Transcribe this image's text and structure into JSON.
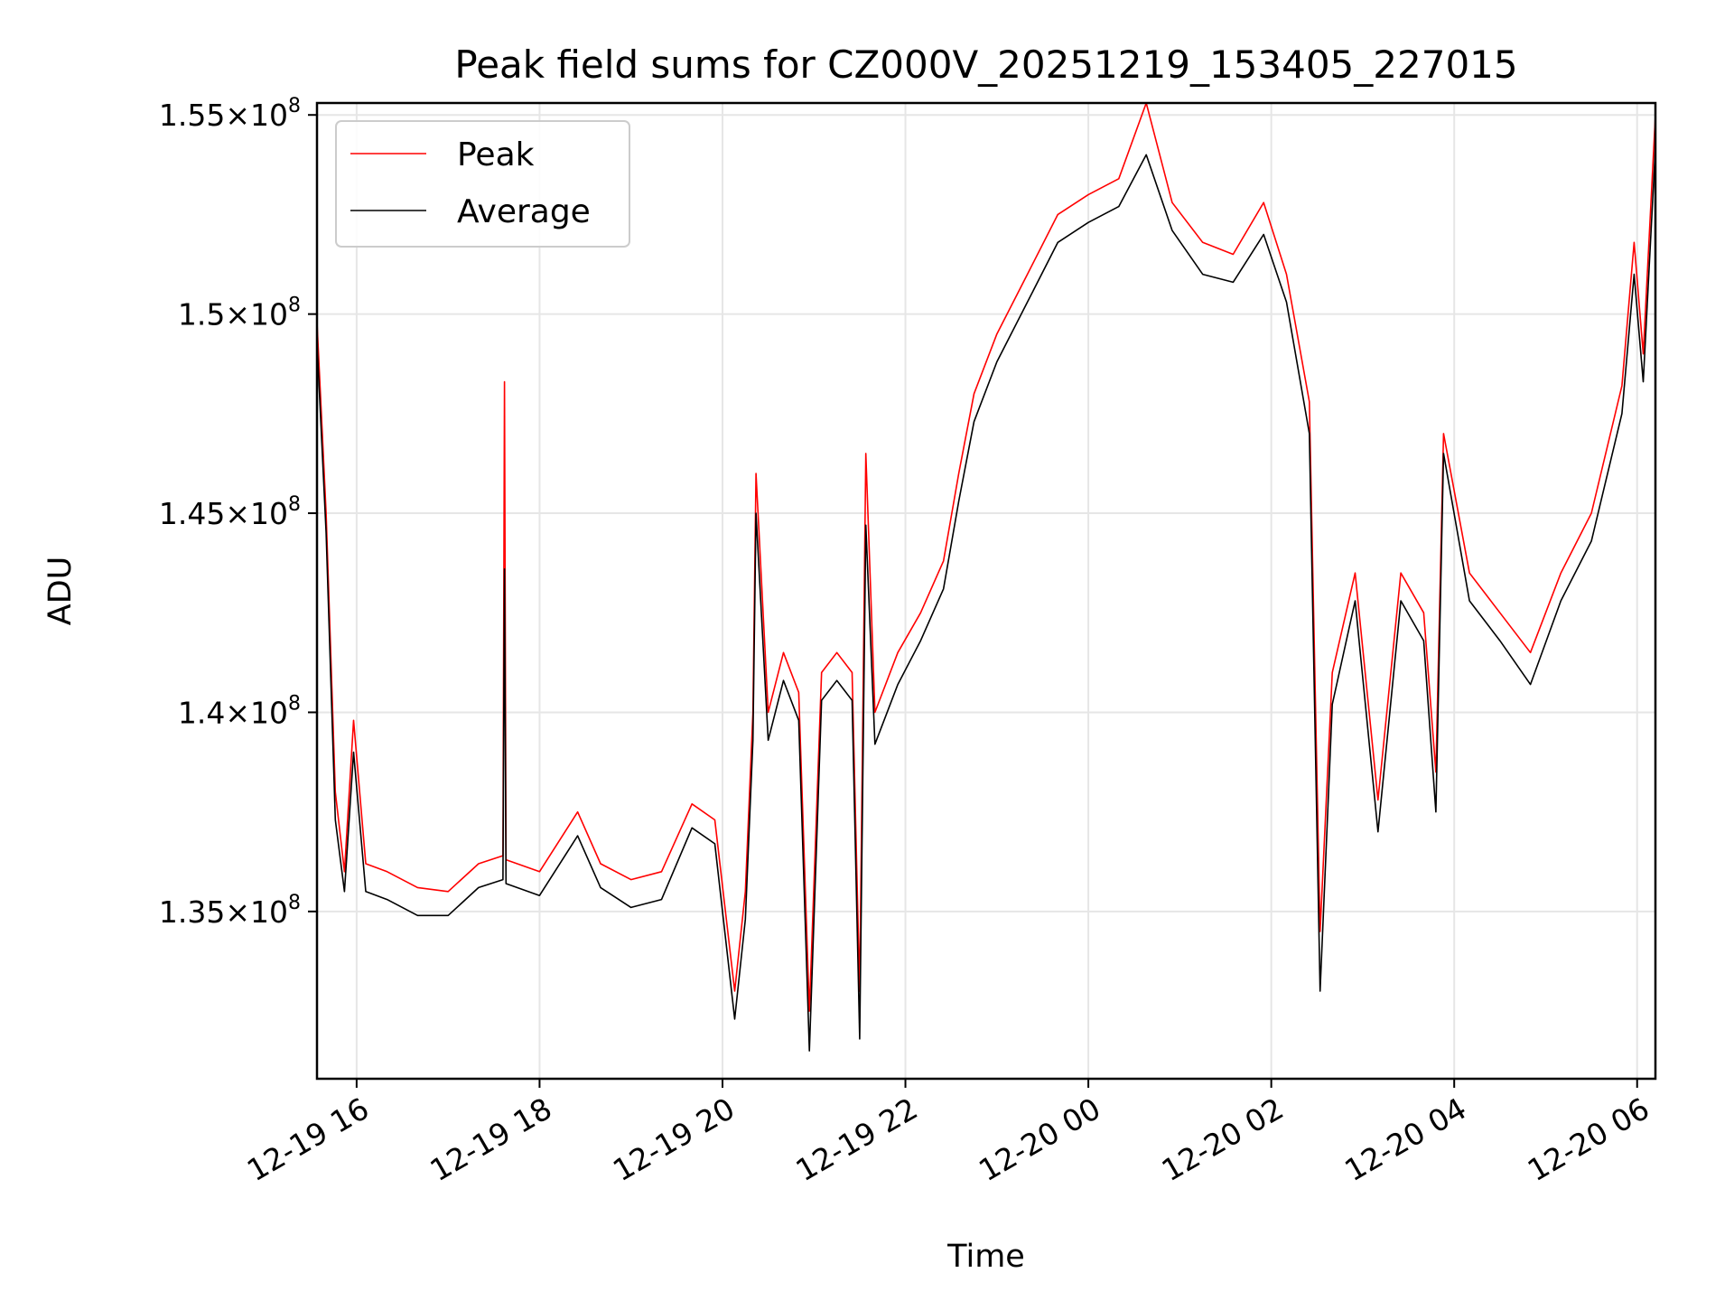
{
  "chart_data": {
    "type": "line",
    "title": "Peak field sums for CZ000V_20251219_153405_227015",
    "xlabel": "Time",
    "ylabel": "ADU",
    "x_range": [
      "2025-12-19T15:34",
      "2025-12-20T06:12"
    ],
    "ylim": [
      130800000,
      155300000
    ],
    "grid": true,
    "legend_position": "upper-left",
    "x_ticks": [
      {
        "t": "2025-12-19T16:00",
        "label": "12-19 16"
      },
      {
        "t": "2025-12-19T18:00",
        "label": "12-19 18"
      },
      {
        "t": "2025-12-19T20:00",
        "label": "12-19 20"
      },
      {
        "t": "2025-12-19T22:00",
        "label": "12-19 22"
      },
      {
        "t": "2025-12-20T00:00",
        "label": "12-20 00"
      },
      {
        "t": "2025-12-20T02:00",
        "label": "12-20 02"
      },
      {
        "t": "2025-12-20T04:00",
        "label": "12-20 04"
      },
      {
        "t": "2025-12-20T06:00",
        "label": "12-20 06"
      }
    ],
    "y_ticks": [
      {
        "value": 135000000,
        "mantissa": "1.35",
        "base": "10",
        "exponent": "8"
      },
      {
        "value": 140000000,
        "mantissa": "1.4",
        "base": "10",
        "exponent": "8"
      },
      {
        "value": 145000000,
        "mantissa": "1.45",
        "base": "10",
        "exponent": "8"
      },
      {
        "value": 150000000,
        "mantissa": "1.5",
        "base": "10",
        "exponent": "8"
      },
      {
        "value": 155000000,
        "mantissa": "1.55",
        "base": "10",
        "exponent": "8"
      }
    ],
    "series": [
      {
        "name": "Peak",
        "color": "#ff0000",
        "x": [
          "2025-12-19T15:34",
          "2025-12-19T15:40",
          "2025-12-19T15:46",
          "2025-12-19T15:52",
          "2025-12-19T15:58",
          "2025-12-19T16:06",
          "2025-12-19T16:20",
          "2025-12-19T16:40",
          "2025-12-19T17:00",
          "2025-12-19T17:20",
          "2025-12-19T17:36",
          "2025-12-19T17:37",
          "2025-12-19T17:38",
          "2025-12-19T18:00",
          "2025-12-19T18:25",
          "2025-12-19T18:40",
          "2025-12-19T19:00",
          "2025-12-19T19:20",
          "2025-12-19T19:40",
          "2025-12-19T19:55",
          "2025-12-19T20:08",
          "2025-12-19T20:15",
          "2025-12-19T20:20",
          "2025-12-19T20:22",
          "2025-12-19T20:30",
          "2025-12-19T20:40",
          "2025-12-19T20:50",
          "2025-12-19T20:57",
          "2025-12-19T21:05",
          "2025-12-19T21:15",
          "2025-12-19T21:25",
          "2025-12-19T21:30",
          "2025-12-19T21:34",
          "2025-12-19T21:40",
          "2025-12-19T21:55",
          "2025-12-19T22:10",
          "2025-12-19T22:25",
          "2025-12-19T22:35",
          "2025-12-19T22:45",
          "2025-12-19T23:00",
          "2025-12-19T23:20",
          "2025-12-19T23:40",
          "2025-12-20T00:00",
          "2025-12-20T00:20",
          "2025-12-20T00:38",
          "2025-12-20T00:55",
          "2025-12-20T01:15",
          "2025-12-20T01:35",
          "2025-12-20T01:55",
          "2025-12-20T02:10",
          "2025-12-20T02:25",
          "2025-12-20T02:32",
          "2025-12-20T02:40",
          "2025-12-20T02:55",
          "2025-12-20T03:10",
          "2025-12-20T03:25",
          "2025-12-20T03:40",
          "2025-12-20T03:48",
          "2025-12-20T03:53",
          "2025-12-20T04:10",
          "2025-12-20T04:30",
          "2025-12-20T04:50",
          "2025-12-20T05:10",
          "2025-12-20T05:30",
          "2025-12-20T05:50",
          "2025-12-20T05:58",
          "2025-12-20T06:04",
          "2025-12-20T06:12"
        ],
        "y": [
          149800000,
          145000000,
          138000000,
          136000000,
          139800000,
          136200000,
          136000000,
          135600000,
          135500000,
          136200000,
          136400000,
          148300000,
          136300000,
          136000000,
          137500000,
          136200000,
          135800000,
          136000000,
          137700000,
          137300000,
          133000000,
          135500000,
          140000000,
          146000000,
          140000000,
          141500000,
          140500000,
          132500000,
          141000000,
          141500000,
          141000000,
          133000000,
          146500000,
          140000000,
          141500000,
          142500000,
          143800000,
          146000000,
          148000000,
          149500000,
          151000000,
          152500000,
          153000000,
          153400000,
          155300000,
          152800000,
          151800000,
          151500000,
          152800000,
          151000000,
          147800000,
          134500000,
          141000000,
          143500000,
          137800000,
          143500000,
          142500000,
          138500000,
          147000000,
          143500000,
          142500000,
          141500000,
          143500000,
          145000000,
          148200000,
          151800000,
          149000000,
          155000000
        ]
      },
      {
        "name": "Average",
        "color": "#000000",
        "x": [
          "2025-12-19T15:34",
          "2025-12-19T15:40",
          "2025-12-19T15:46",
          "2025-12-19T15:52",
          "2025-12-19T15:58",
          "2025-12-19T16:06",
          "2025-12-19T16:20",
          "2025-12-19T16:40",
          "2025-12-19T17:00",
          "2025-12-19T17:20",
          "2025-12-19T17:36",
          "2025-12-19T17:37",
          "2025-12-19T17:38",
          "2025-12-19T18:00",
          "2025-12-19T18:25",
          "2025-12-19T18:40",
          "2025-12-19T19:00",
          "2025-12-19T19:20",
          "2025-12-19T19:40",
          "2025-12-19T19:55",
          "2025-12-19T20:08",
          "2025-12-19T20:15",
          "2025-12-19T20:20",
          "2025-12-19T20:22",
          "2025-12-19T20:30",
          "2025-12-19T20:40",
          "2025-12-19T20:50",
          "2025-12-19T20:57",
          "2025-12-19T21:05",
          "2025-12-19T21:15",
          "2025-12-19T21:25",
          "2025-12-19T21:30",
          "2025-12-19T21:34",
          "2025-12-19T21:40",
          "2025-12-19T21:55",
          "2025-12-19T22:10",
          "2025-12-19T22:25",
          "2025-12-19T22:35",
          "2025-12-19T22:45",
          "2025-12-19T23:00",
          "2025-12-19T23:20",
          "2025-12-19T23:40",
          "2025-12-20T00:00",
          "2025-12-20T00:20",
          "2025-12-20T00:38",
          "2025-12-20T00:55",
          "2025-12-20T01:15",
          "2025-12-20T01:35",
          "2025-12-20T01:55",
          "2025-12-20T02:10",
          "2025-12-20T02:25",
          "2025-12-20T02:32",
          "2025-12-20T02:40",
          "2025-12-20T02:55",
          "2025-12-20T03:10",
          "2025-12-20T03:25",
          "2025-12-20T03:40",
          "2025-12-20T03:48",
          "2025-12-20T03:53",
          "2025-12-20T04:10",
          "2025-12-20T04:30",
          "2025-12-20T04:50",
          "2025-12-20T05:10",
          "2025-12-20T05:30",
          "2025-12-20T05:50",
          "2025-12-20T05:58",
          "2025-12-20T06:04",
          "2025-12-20T06:12"
        ],
        "y": [
          149300000,
          144500000,
          137300000,
          135500000,
          139000000,
          135500000,
          135300000,
          134900000,
          134900000,
          135600000,
          135800000,
          143600000,
          135700000,
          135400000,
          136900000,
          135600000,
          135100000,
          135300000,
          137100000,
          136700000,
          132300000,
          134800000,
          139300000,
          145000000,
          139300000,
          140800000,
          139800000,
          131500000,
          140300000,
          140800000,
          140300000,
          131800000,
          144700000,
          139200000,
          140700000,
          141800000,
          143100000,
          145300000,
          147300000,
          148800000,
          150300000,
          151800000,
          152300000,
          152700000,
          154000000,
          152100000,
          151000000,
          150800000,
          152000000,
          150300000,
          147000000,
          133000000,
          140200000,
          142800000,
          137000000,
          142800000,
          141800000,
          137500000,
          146500000,
          142800000,
          141800000,
          140700000,
          142800000,
          144300000,
          147500000,
          151000000,
          148300000,
          154200000
        ]
      }
    ]
  }
}
